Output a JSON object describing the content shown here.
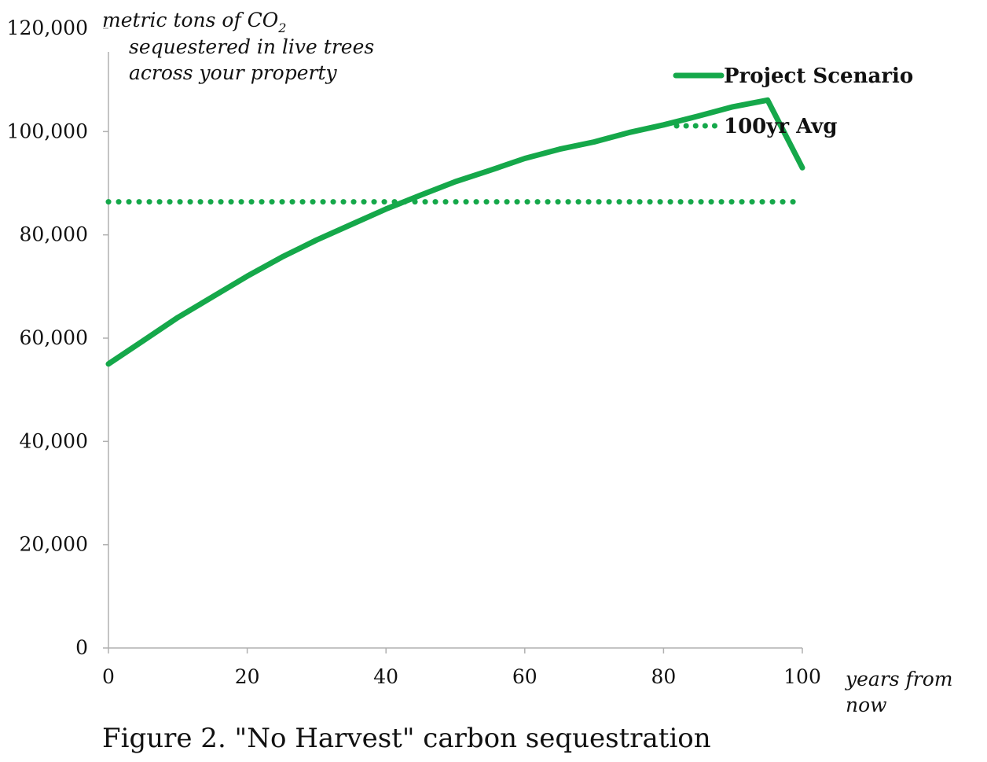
{
  "chart_data": {
    "type": "line",
    "caption": "Figure 2. \"No Harvest\" carbon sequestration",
    "ylabel_lines": [
      "metric tons of CO",
      "sequestered in live trees",
      "across your property"
    ],
    "ylabel_subscript": "2",
    "xlabel_lines": [
      "years from",
      "now"
    ],
    "xlim": [
      0,
      100
    ],
    "ylim": [
      0,
      120000
    ],
    "x_ticks": [
      0,
      20,
      40,
      60,
      80,
      100
    ],
    "x_tick_labels": [
      "0",
      "20",
      "40",
      "60",
      "80",
      "100"
    ],
    "y_ticks": [
      0,
      20000,
      40000,
      60000,
      80000,
      100000,
      120000
    ],
    "y_tick_labels": [
      "0",
      "20,000",
      "40,000",
      "60,000",
      "80,000",
      "100,000",
      "120,000"
    ],
    "grid": false,
    "legend_position": "top-right",
    "colors": {
      "line": "#15a84a",
      "axis": "#b0b0b0",
      "text": "#111111"
    },
    "series": [
      {
        "name": "Project Scenario",
        "style": "solid",
        "x": [
          0,
          5,
          10,
          15,
          20,
          25,
          30,
          35,
          40,
          45,
          50,
          55,
          60,
          65,
          70,
          75,
          80,
          85,
          90,
          95,
          100
        ],
        "values": [
          55000,
          59500,
          64000,
          68000,
          72000,
          75700,
          79000,
          82000,
          85000,
          87700,
          90300,
          92500,
          94800,
          96600,
          98000,
          99800,
          101300,
          103000,
          104800,
          106100,
          93000
        ]
      },
      {
        "name": "100yr Avg",
        "style": "dotted",
        "x": [
          0,
          100
        ],
        "values": [
          86400,
          86400
        ]
      }
    ]
  }
}
